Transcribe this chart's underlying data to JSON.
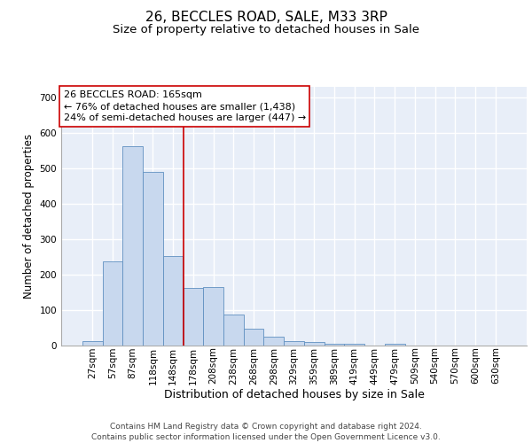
{
  "title1": "26, BECCLES ROAD, SALE, M33 3RP",
  "title2": "Size of property relative to detached houses in Sale",
  "xlabel": "Distribution of detached houses by size in Sale",
  "ylabel": "Number of detached properties",
  "categories": [
    "27sqm",
    "57sqm",
    "87sqm",
    "118sqm",
    "148sqm",
    "178sqm",
    "208sqm",
    "238sqm",
    "268sqm",
    "298sqm",
    "329sqm",
    "359sqm",
    "389sqm",
    "419sqm",
    "449sqm",
    "479sqm",
    "509sqm",
    "540sqm",
    "570sqm",
    "600sqm",
    "630sqm"
  ],
  "values": [
    12,
    238,
    562,
    488,
    253,
    163,
    165,
    88,
    47,
    24,
    13,
    10,
    6,
    5,
    0,
    5,
    0,
    0,
    0,
    0,
    0
  ],
  "bar_color": "#c8d8ee",
  "bar_edge_color": "#6090c0",
  "background_color": "#e8eef8",
  "grid_color": "#ffffff",
  "annotation_line1": "26 BECCLES ROAD: 165sqm",
  "annotation_line2": "← 76% of detached houses are smaller (1,438)",
  "annotation_line3": "24% of semi-detached houses are larger (447) →",
  "annotation_box_edge_color": "#cc0000",
  "vline_x": 4.5,
  "vline_color": "#cc0000",
  "ylim": [
    0,
    730
  ],
  "yticks": [
    0,
    100,
    200,
    300,
    400,
    500,
    600,
    700
  ],
  "footer1": "Contains HM Land Registry data © Crown copyright and database right 2024.",
  "footer2": "Contains public sector information licensed under the Open Government Licence v3.0.",
  "title_fontsize": 11,
  "subtitle_fontsize": 9.5,
  "axis_label_fontsize": 9,
  "tick_fontsize": 7.5,
  "annotation_fontsize": 8,
  "footer_fontsize": 6.5,
  "ylabel_fontsize": 8.5
}
